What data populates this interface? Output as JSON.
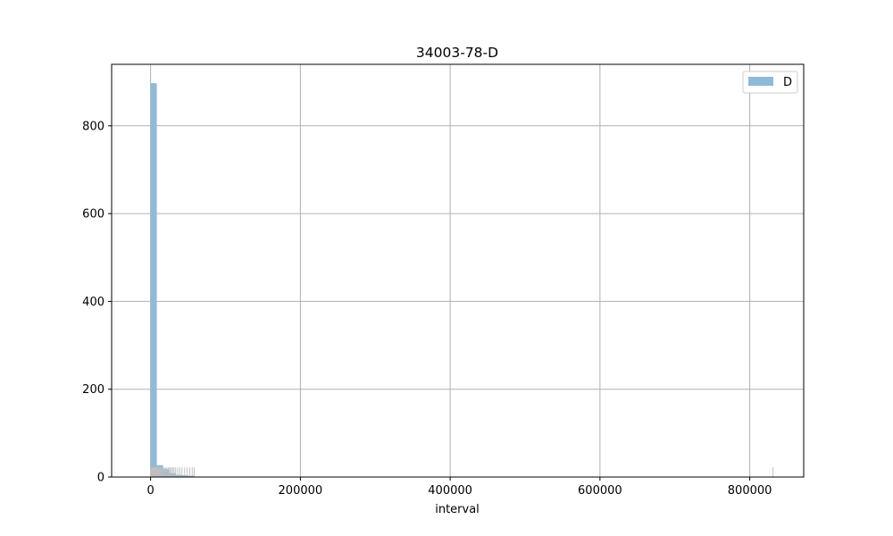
{
  "chart_data": {
    "type": "bar",
    "title": "34003-78-D",
    "xlabel": "interval",
    "ylabel": "",
    "xlim": [
      -52000,
      872000
    ],
    "ylim": [
      0,
      940
    ],
    "xticks": [
      0,
      200000,
      400000,
      600000,
      800000
    ],
    "xtick_labels": [
      "0",
      "200000",
      "400000",
      "600000",
      "800000"
    ],
    "yticks": [
      0,
      200,
      400,
      600,
      800
    ],
    "ytick_labels": [
      "0",
      "200",
      "400",
      "600",
      "800"
    ],
    "grid": true,
    "legend": {
      "position": "top-right",
      "entries": [
        "D"
      ]
    },
    "series": [
      {
        "name": "D",
        "color": "#8fbad9",
        "bins": [
          {
            "x0": 0,
            "x1": 8310,
            "count": 897
          },
          {
            "x0": 8310,
            "x1": 16620,
            "count": 27
          },
          {
            "x0": 16620,
            "x1": 24930,
            "count": 18
          },
          {
            "x0": 24930,
            "x1": 33240,
            "count": 9
          },
          {
            "x0": 33240,
            "x1": 41550,
            "count": 5
          },
          {
            "x0": 41550,
            "x1": 49860,
            "count": 4
          },
          {
            "x0": 49860,
            "x1": 58170,
            "count": 3
          },
          {
            "x0": 58170,
            "x1": 66480,
            "count": 1
          },
          {
            "x0": 822690,
            "x1": 831000,
            "count": 1
          }
        ]
      }
    ],
    "rug": {
      "color": "#bfbfbf",
      "height_units": 22,
      "x": [
        200,
        600,
        900,
        1300,
        1700,
        2100,
        2600,
        3000,
        3500,
        4000,
        4600,
        5200,
        5900,
        6600,
        7400,
        8200,
        9100,
        10100,
        11200,
        12400,
        13700,
        15100,
        16700,
        18300,
        20000,
        21900,
        23800,
        25600,
        27500,
        29300,
        31200,
        33500,
        36200,
        39000,
        42000,
        45500,
        48800,
        52300,
        55600,
        58200,
        831000
      ]
    }
  }
}
